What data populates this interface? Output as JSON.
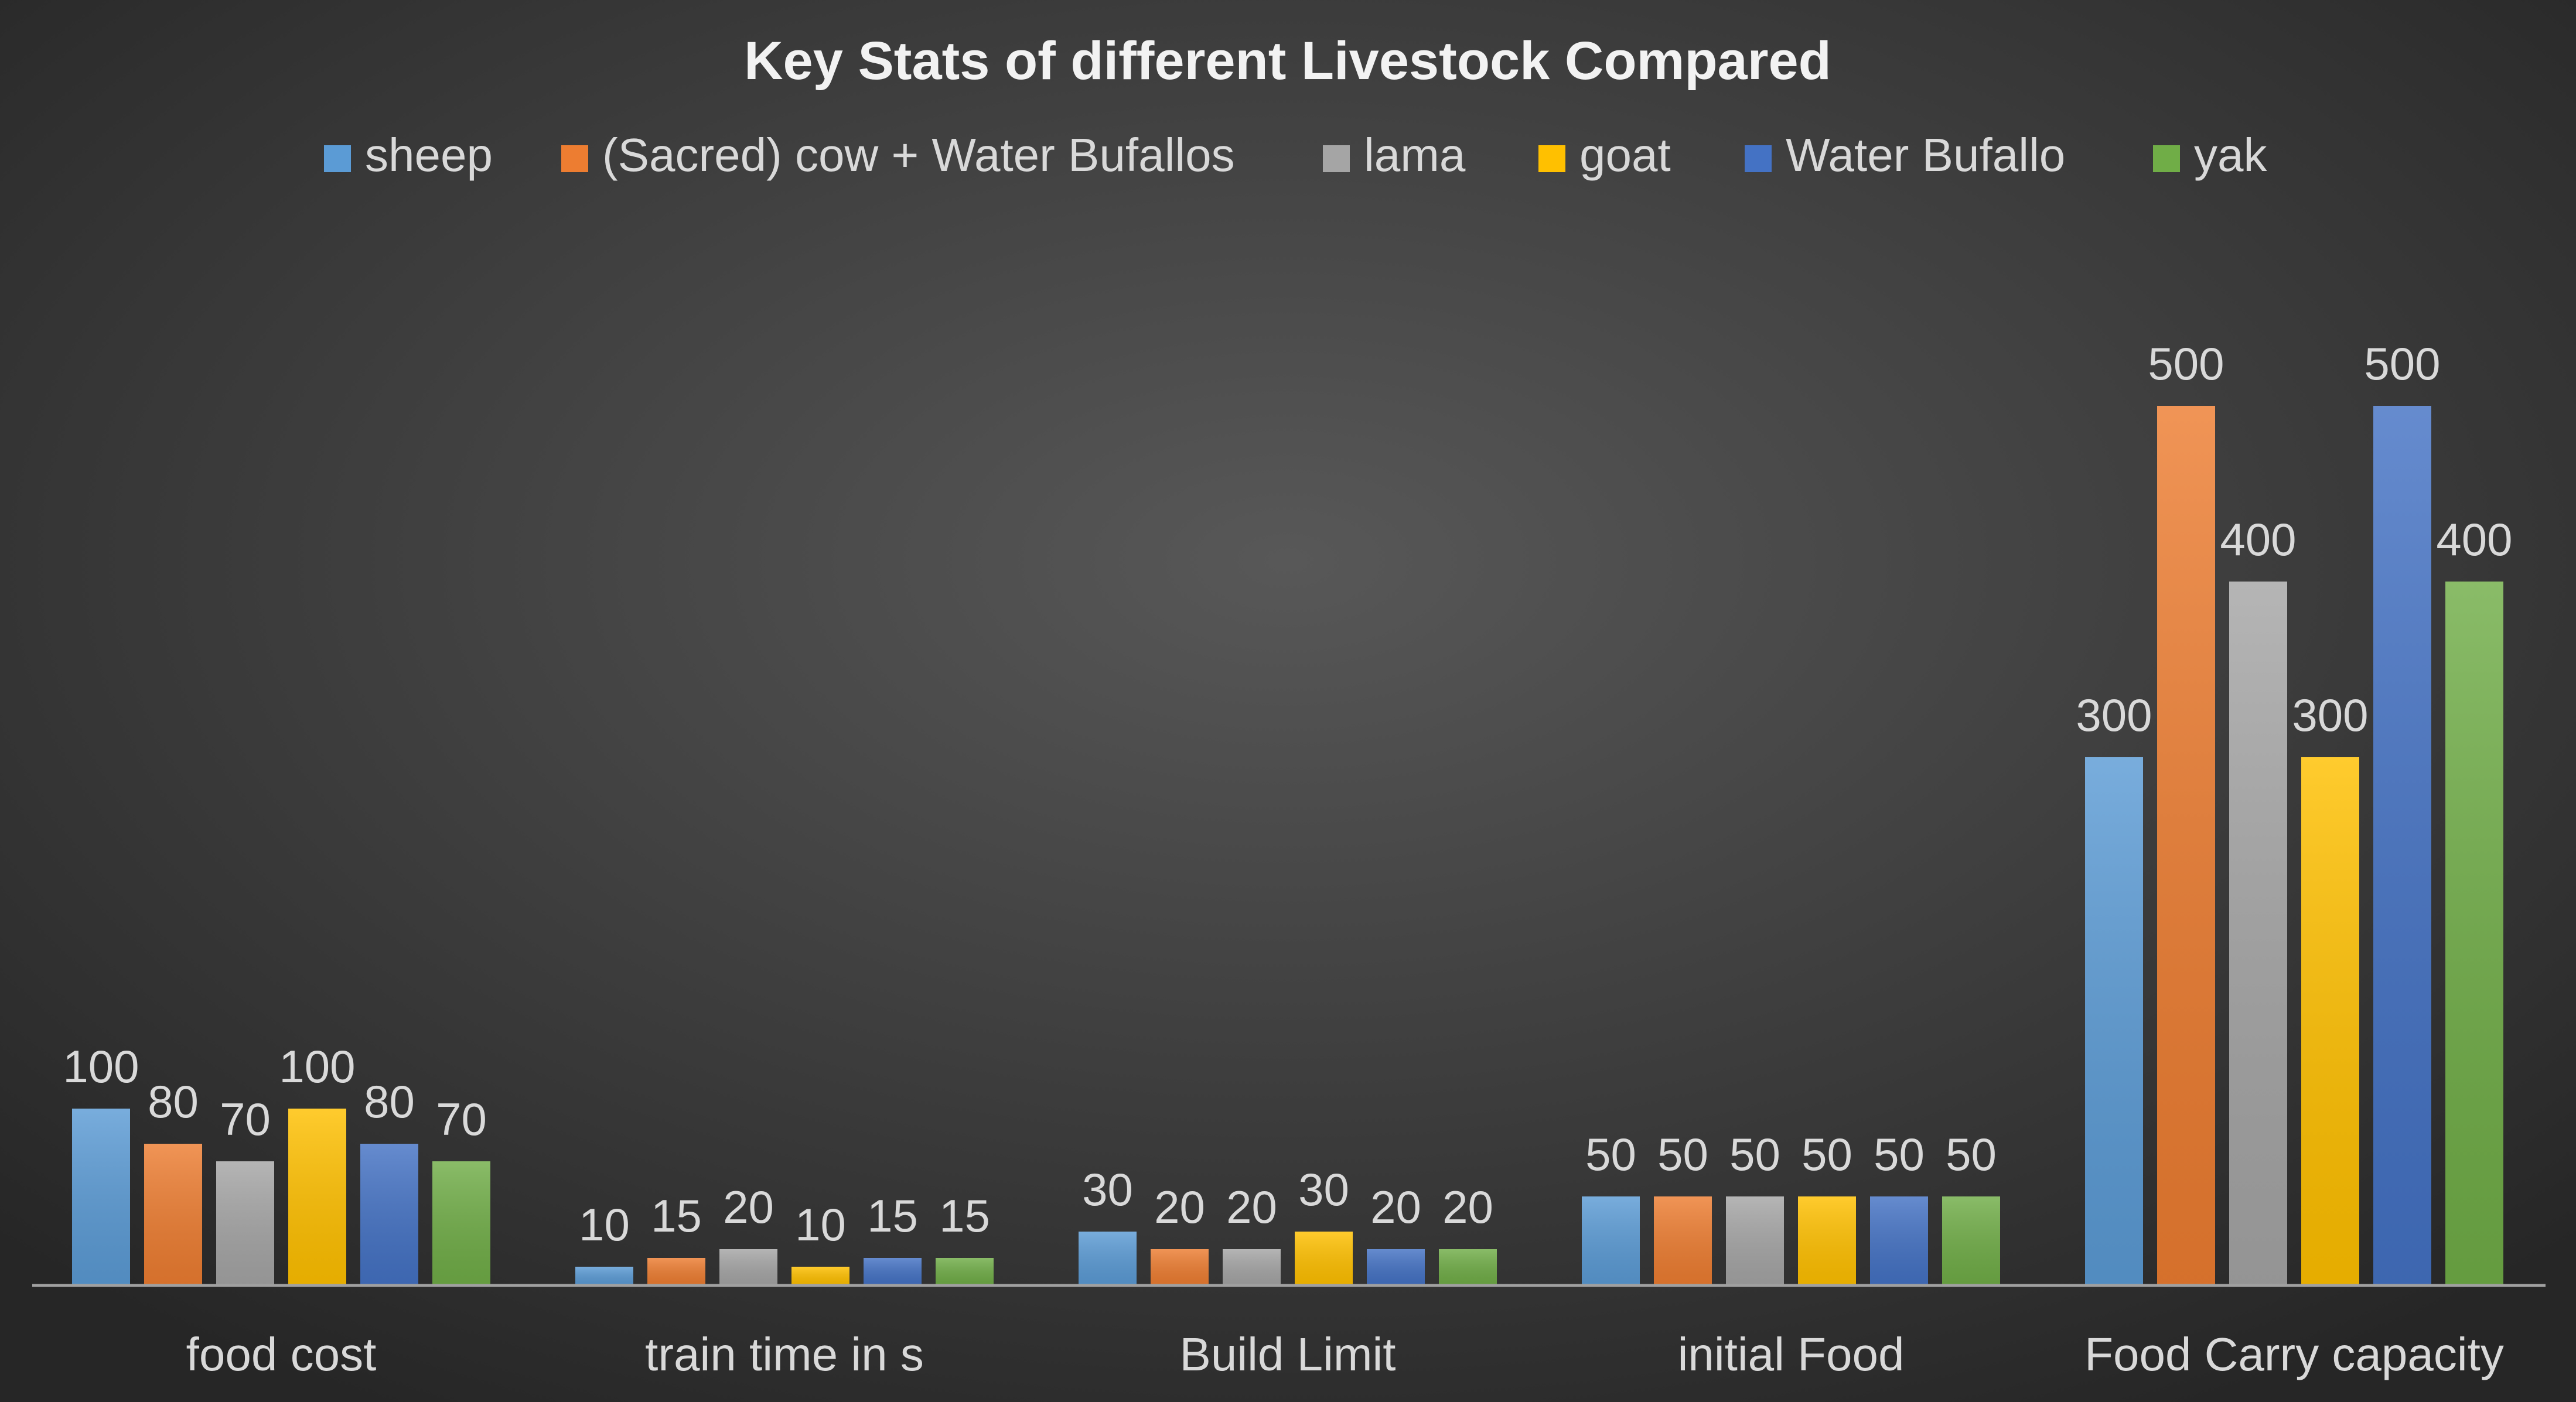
{
  "chart_data": {
    "type": "bar",
    "title": "Key Stats of different Livestock Compared",
    "categories": [
      "food cost",
      "train time in s",
      "Build Limit",
      "initial Food",
      "Food Carry capacity"
    ],
    "series": [
      {
        "name": "sheep",
        "color": "#5b9bd5",
        "values": [
          100,
          10,
          30,
          50,
          300
        ]
      },
      {
        "name": "(Sacred) cow + Water Bufallos",
        "color": "#ed7d31",
        "values": [
          80,
          15,
          20,
          50,
          500
        ]
      },
      {
        "name": "lama",
        "color": "#a5a5a5",
        "values": [
          70,
          20,
          20,
          50,
          400
        ]
      },
      {
        "name": "goat",
        "color": "#ffc000",
        "values": [
          100,
          10,
          30,
          50,
          300
        ]
      },
      {
        "name": "Water Bufallo",
        "color": "#4472c4",
        "values": [
          80,
          15,
          20,
          50,
          500
        ]
      },
      {
        "name": "yak",
        "color": "#70ad47",
        "values": [
          70,
          15,
          20,
          50,
          400
        ]
      }
    ],
    "xlabel": "",
    "ylabel": "",
    "ylim": [
      0,
      560
    ],
    "grid": false,
    "legend": "top",
    "data_labels": true
  }
}
